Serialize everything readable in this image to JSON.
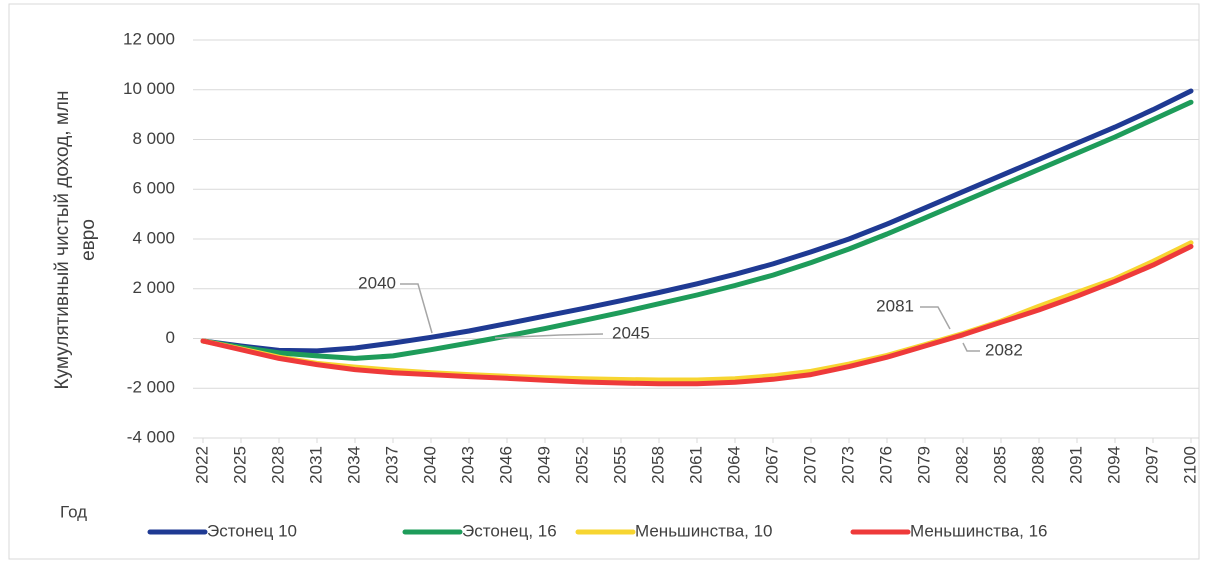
{
  "chart_data": {
    "type": "line",
    "y_label": [
      "Кумулятивный чистый доход, млн",
      "евро"
    ],
    "x_label": "Год",
    "x": [
      2022,
      2025,
      2028,
      2031,
      2034,
      2037,
      2040,
      2043,
      2046,
      2049,
      2052,
      2055,
      2058,
      2061,
      2064,
      2067,
      2070,
      2073,
      2076,
      2079,
      2082,
      2085,
      2088,
      2091,
      2094,
      2097,
      2100
    ],
    "xlim": [
      2022,
      2100
    ],
    "xticks": [
      2022,
      2025,
      2028,
      2031,
      2034,
      2037,
      2040,
      2043,
      2046,
      2049,
      2052,
      2055,
      2058,
      2061,
      2064,
      2067,
      2070,
      2073,
      2076,
      2079,
      2082,
      2085,
      2088,
      2091,
      2094,
      2097,
      2100
    ],
    "ylim": [
      -4000,
      12000
    ],
    "yticks": [
      {
        "value": -4000,
        "label": "-4 000"
      },
      {
        "value": -2000,
        "label": "-2 000"
      },
      0,
      {
        "value": 2000,
        "label": "2 000"
      },
      {
        "value": 4000,
        "label": "4 000"
      },
      {
        "value": 6000,
        "label": "6 000"
      },
      {
        "value": 8000,
        "label": "8 000"
      },
      {
        "value": 10000,
        "label": "10 000"
      },
      {
        "value": 12000,
        "label": "12 000"
      }
    ],
    "grid": true,
    "legend": "bottom",
    "series": [
      {
        "name": "Эстонец 10",
        "color": "#1f3a93",
        "values": [
          -100,
          -300,
          -480,
          -500,
          -380,
          -180,
          50,
          300,
          600,
          900,
          1200,
          1520,
          1850,
          2200,
          2580,
          3000,
          3480,
          4000,
          4600,
          5250,
          5900,
          6550,
          7200,
          7850,
          8500,
          9200,
          9950
        ]
      },
      {
        "name": "Эстонец, 16",
        "color": "#1e9c5a",
        "values": [
          -100,
          -350,
          -580,
          -700,
          -800,
          -700,
          -450,
          -180,
          100,
          400,
          720,
          1050,
          1400,
          1750,
          2130,
          2550,
          3050,
          3600,
          4200,
          4850,
          5500,
          6150,
          6800,
          7450,
          8100,
          8800,
          9500
        ]
      },
      {
        "name": "Меньшинства, 10",
        "color": "#f7d531",
        "values": [
          -100,
          -420,
          -750,
          -1000,
          -1150,
          -1280,
          -1380,
          -1450,
          -1520,
          -1580,
          -1620,
          -1650,
          -1670,
          -1670,
          -1620,
          -1500,
          -1320,
          -1030,
          -680,
          -250,
          200,
          700,
          1300,
          1850,
          2400,
          3100,
          3850
        ]
      },
      {
        "name": "Меньшинства, 16",
        "color": "#ee3a3a",
        "values": [
          -100,
          -450,
          -800,
          -1050,
          -1250,
          -1380,
          -1450,
          -1530,
          -1600,
          -1680,
          -1750,
          -1790,
          -1820,
          -1820,
          -1760,
          -1640,
          -1450,
          -1130,
          -750,
          -300,
          150,
          650,
          1150,
          1700,
          2300,
          2950,
          3700
        ]
      }
    ],
    "annotations": [
      "2040",
      "2045",
      "2081",
      "2082"
    ]
  }
}
